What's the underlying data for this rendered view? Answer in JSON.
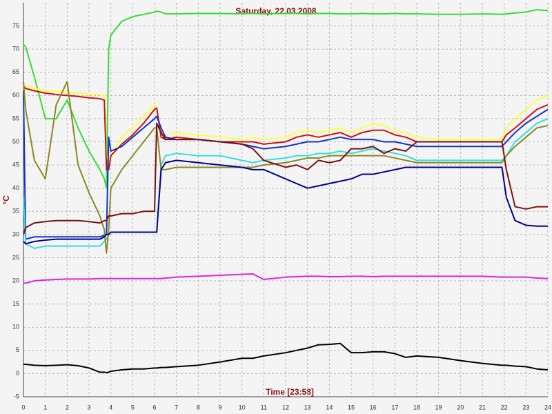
{
  "chart_data": {
    "type": "line",
    "title": "Saturday, 22.03.2008",
    "xlabel": "Time [23:58]",
    "ylabel": "°C",
    "xlim": [
      0,
      24
    ],
    "ylim": [
      -5,
      80
    ],
    "xticks": [
      0,
      1,
      2,
      3,
      4,
      5,
      6,
      7,
      8,
      9,
      10,
      11,
      12,
      13,
      14,
      15,
      16,
      17,
      18,
      19,
      20,
      21,
      22,
      23,
      24
    ],
    "yticks": [
      -5,
      0,
      5,
      10,
      15,
      20,
      25,
      30,
      35,
      40,
      45,
      50,
      55,
      60,
      65,
      70,
      75
    ],
    "grid": true,
    "x": [
      0,
      0.1,
      0.5,
      1,
      1.5,
      2,
      2.5,
      3,
      3.5,
      3.7,
      3.8,
      3.9,
      4,
      4.5,
      5,
      5.5,
      6,
      6.1,
      6.3,
      6.5,
      7,
      8,
      9,
      10,
      10.5,
      11,
      12,
      12.5,
      13,
      13.5,
      14,
      14.5,
      15,
      15.5,
      16,
      16.5,
      17,
      17.5,
      18,
      19,
      20,
      21,
      21.9,
      22.1,
      22.5,
      23,
      23.5,
      24
    ],
    "series": [
      {
        "color": "#33dd33",
        "values": [
          71,
          70.5,
          64,
          55,
          55,
          59,
          53,
          48,
          44,
          42,
          40,
          70,
          73,
          76,
          77,
          77.5,
          78,
          78.2,
          78,
          77.6,
          77.6,
          77.7,
          77.7,
          77.6,
          77.7,
          77.6,
          77.7,
          77.7,
          77.6,
          77.7,
          77.7,
          77.6,
          77.6,
          77.7,
          77.6,
          77.6,
          77.7,
          77.6,
          77.6,
          77.5,
          77.5,
          77.6,
          77.5,
          77.6,
          77.8,
          78,
          78.5,
          78.3
        ]
      },
      {
        "color": "#ffff40",
        "values": [
          62,
          62,
          61.5,
          61,
          61,
          60.7,
          60.5,
          60.3,
          60.2,
          60,
          47,
          46,
          47,
          51,
          53,
          55.5,
          58,
          57,
          52,
          51.5,
          52,
          51.5,
          51,
          50.5,
          51,
          50.5,
          51,
          52,
          52.5,
          52,
          52.5,
          53,
          52,
          53,
          54,
          53.5,
          52.5,
          52,
          51,
          50.5,
          50.5,
          50.5,
          50.5,
          53,
          55,
          57,
          59,
          60
        ]
      },
      {
        "color": "#cc1111",
        "values": [
          62,
          61.5,
          61,
          60.5,
          60.2,
          60,
          59.8,
          59.5,
          59.3,
          59,
          44,
          44,
          47,
          49.5,
          51.5,
          54,
          57,
          57.3,
          51,
          50.5,
          51,
          50.5,
          50,
          50,
          50,
          49.5,
          50,
          51,
          51.5,
          51,
          51.5,
          52,
          51,
          52,
          52.5,
          52.5,
          51.5,
          51,
          50,
          50,
          50,
          50,
          50,
          51.5,
          53,
          55,
          57,
          58
        ]
      },
      {
        "color": "#1133cc",
        "values": [
          61,
          29,
          29.5,
          29.5,
          29.5,
          29.5,
          29.5,
          29.5,
          29.5,
          29.8,
          30,
          51,
          48,
          49,
          51,
          53,
          55,
          55.5,
          53,
          51,
          50.5,
          50.5,
          50,
          49.5,
          49,
          48.5,
          49,
          49.5,
          50,
          50,
          50.5,
          51,
          50.5,
          50.5,
          50.5,
          50,
          50,
          49.5,
          49,
          49,
          49,
          49,
          49,
          50,
          52,
          54,
          55.5,
          57
        ]
      },
      {
        "color": "#33dddd",
        "values": [
          38,
          28,
          27,
          27.5,
          27.5,
          27.5,
          27.5,
          27.5,
          27.5,
          28.5,
          29,
          30,
          30.5,
          30.5,
          30.5,
          30.5,
          30.5,
          30.5,
          45,
          47,
          47.5,
          47,
          47,
          46,
          45.5,
          46,
          46.5,
          47,
          47,
          47.5,
          47.5,
          48,
          47.5,
          48,
          48.5,
          48,
          47.5,
          47,
          46,
          46,
          46,
          46,
          46,
          47,
          50,
          52,
          54,
          55
        ]
      },
      {
        "color": "#888822",
        "values": [
          63,
          57,
          46,
          42,
          58,
          63,
          45,
          39,
          34,
          31,
          26,
          31,
          40,
          44,
          47,
          50,
          53,
          53,
          44,
          44,
          44.5,
          44.5,
          44.5,
          44.5,
          44.5,
          45,
          45.5,
          46,
          46.5,
          46.5,
          47,
          47,
          47,
          47,
          47,
          47,
          46.5,
          46,
          45.5,
          45.5,
          45.5,
          45.5,
          45.5,
          47,
          49,
          51,
          53,
          53.5
        ]
      },
      {
        "color": "#771111",
        "values": [
          30,
          31.5,
          32.5,
          32.8,
          33,
          33,
          33,
          32.8,
          32.5,
          33,
          33,
          34,
          34,
          34.5,
          34.5,
          35,
          35,
          54,
          52,
          50.5,
          50.5,
          50.5,
          50,
          49.5,
          48.5,
          46,
          44.5,
          45,
          44,
          46,
          45.5,
          46,
          48.5,
          48.5,
          49,
          47.5,
          48.5,
          48,
          50,
          50,
          50,
          50,
          50,
          44,
          36,
          35.5,
          36,
          36
        ]
      },
      {
        "color": "#000088",
        "values": [
          28.5,
          28,
          28.5,
          28.8,
          29,
          29,
          29,
          29,
          29,
          29.5,
          30,
          30,
          30.5,
          30.5,
          30.5,
          30.5,
          30.5,
          30.5,
          44,
          45.5,
          46,
          45.5,
          45,
          44.5,
          44,
          44,
          42,
          41,
          40,
          40.5,
          41,
          41.5,
          42,
          43,
          43,
          43.5,
          44,
          44.5,
          44.5,
          44.5,
          44.5,
          44.5,
          44.5,
          38,
          33,
          32,
          31.8,
          31.8
        ]
      },
      {
        "color": "#dd22dd",
        "values": [
          19.5,
          19.5,
          20,
          20.2,
          20.3,
          20.4,
          20.4,
          20.4,
          20.5,
          20.5,
          20.5,
          20.5,
          20.5,
          20.5,
          20.5,
          20.5,
          20.5,
          20.5,
          20.5,
          20.6,
          20.8,
          21,
          21.2,
          21.4,
          21.5,
          20.3,
          20.8,
          20.9,
          21,
          21,
          20.9,
          20.9,
          21,
          21,
          20.9,
          21,
          21,
          21,
          21,
          21,
          21,
          21,
          20.8,
          20.8,
          20.8,
          20.8,
          20.6,
          20.5
        ]
      },
      {
        "color": "#000000",
        "values": [
          2,
          2,
          1.8,
          1.7,
          1.8,
          1.9,
          1.7,
          1.2,
          0.3,
          0.3,
          0.2,
          0.3,
          0.5,
          0.8,
          1,
          1,
          1.2,
          1.2,
          1.3,
          1.3,
          1.5,
          1.8,
          2.5,
          3.3,
          3.3,
          3.8,
          4.5,
          5,
          5.5,
          6.2,
          6.3,
          6.5,
          4.5,
          4.5,
          4.7,
          4.7,
          4.3,
          3.5,
          3.8,
          3.5,
          2.8,
          2.2,
          1.8,
          1.8,
          1.6,
          1.5,
          1,
          0.8
        ]
      }
    ]
  }
}
